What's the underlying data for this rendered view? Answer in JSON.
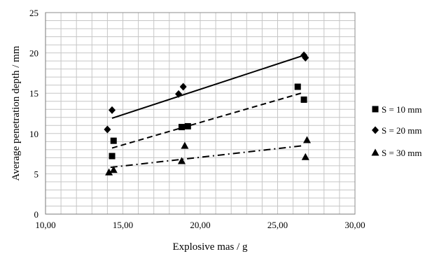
{
  "chart_data": {
    "type": "scatter",
    "xlabel": "Explosive mas / g",
    "ylabel": "Average penetration depth / mm",
    "xlim": [
      10,
      30
    ],
    "ylim": [
      0,
      25
    ],
    "x_ticks": [
      "10,00",
      "15,00",
      "20,00",
      "25,00",
      "30,00"
    ],
    "y_ticks": [
      "0",
      "5",
      "10",
      "15",
      "20",
      "25"
    ],
    "grid": true,
    "legend_position": "right",
    "series": [
      {
        "name": "S = 10 mm",
        "marker": "square",
        "line_style": "dashed",
        "points": [
          [
            14.3,
            7.2
          ],
          [
            14.4,
            9.1
          ],
          [
            18.8,
            10.8
          ],
          [
            19.2,
            10.9
          ],
          [
            26.3,
            15.8
          ],
          [
            26.7,
            14.2
          ]
        ],
        "trend": [
          [
            14.3,
            8.2
          ],
          [
            26.7,
            15.1
          ]
        ]
      },
      {
        "name": "S = 20 mm",
        "marker": "diamond",
        "line_style": "solid",
        "points": [
          [
            14.0,
            10.5
          ],
          [
            14.3,
            12.9
          ],
          [
            18.6,
            14.9
          ],
          [
            18.9,
            15.8
          ],
          [
            26.7,
            19.7
          ],
          [
            26.8,
            19.4
          ]
        ],
        "trend": [
          [
            14.3,
            11.9
          ],
          [
            26.7,
            19.7
          ]
        ]
      },
      {
        "name": "S = 30 mm",
        "marker": "triangle",
        "line_style": "dashdot",
        "points": [
          [
            14.1,
            5.2
          ],
          [
            14.4,
            5.5
          ],
          [
            18.8,
            6.6
          ],
          [
            19.0,
            8.5
          ],
          [
            26.8,
            7.1
          ],
          [
            26.9,
            9.2
          ]
        ],
        "trend": [
          [
            14.2,
            5.8
          ],
          [
            26.7,
            8.5
          ]
        ]
      }
    ]
  }
}
